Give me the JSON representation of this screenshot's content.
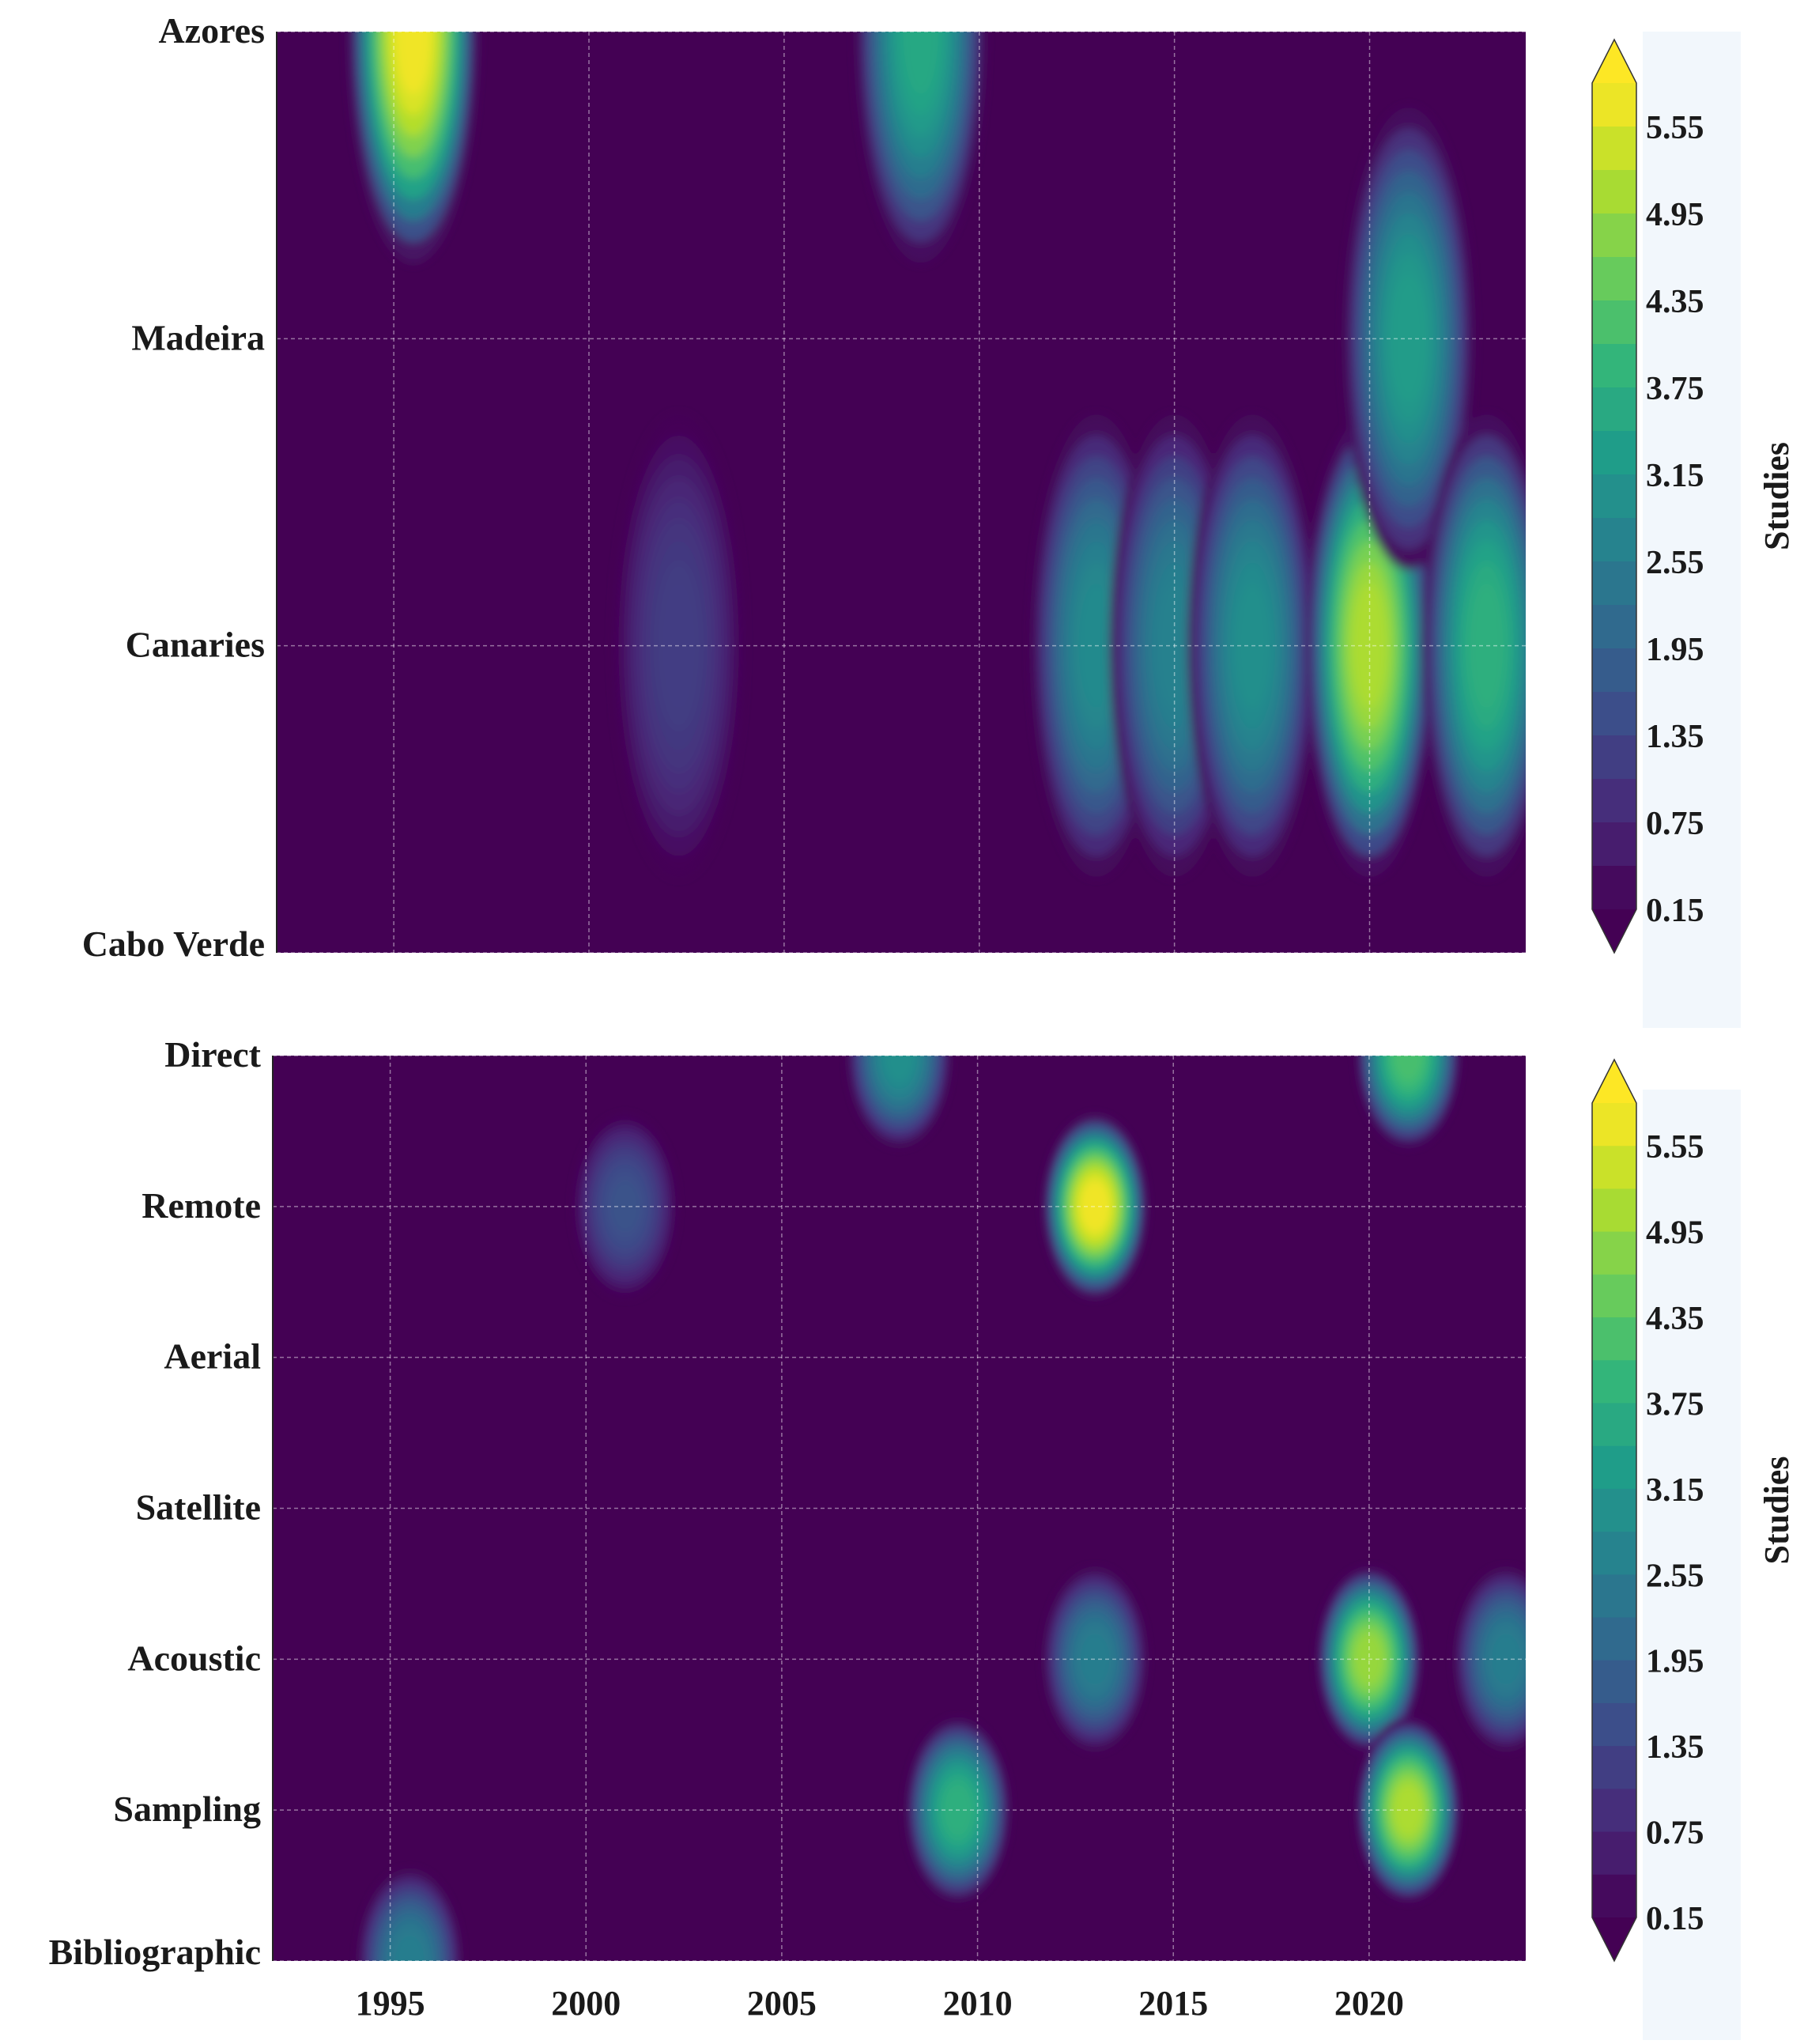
{
  "chart_data": [
    {
      "type": "heatmap",
      "title": "",
      "xlabel": "",
      "ylabel": "",
      "xlim": [
        1992,
        2024
      ],
      "x_ticks": [
        1995,
        2000,
        2005,
        2010,
        2015,
        2020
      ],
      "y_categories": [
        "Azores",
        "Madeira",
        "Canaries",
        "Cabo Verde"
      ],
      "colorbar": {
        "label": "Studies",
        "ticks": [
          "0.15",
          "0.75",
          "1.35",
          "1.95",
          "2.55",
          "3.15",
          "3.75",
          "4.35",
          "4.95",
          "5.55"
        ],
        "range": [
          0.15,
          5.85
        ],
        "extend": "both"
      },
      "hotspots": [
        {
          "x": 1995.5,
          "y": "Azores",
          "value": 5.8
        },
        {
          "x": 2002.3,
          "y": "Canaries",
          "value": 1.2
        },
        {
          "x": 2008.5,
          "y": "Azores",
          "value": 3.6
        },
        {
          "x": 2013.0,
          "y": "Canaries",
          "value": 2.9
        },
        {
          "x": 2015.0,
          "y": "Canaries",
          "value": 2.7
        },
        {
          "x": 2017.0,
          "y": "Canaries",
          "value": 3.0
        },
        {
          "x": 2020.0,
          "y": "Canaries",
          "value": 5.2
        },
        {
          "x": 2021.0,
          "y": "Madeira",
          "value": 3.3
        },
        {
          "x": 2023.0,
          "y": "Canaries",
          "value": 3.8
        }
      ]
    },
    {
      "type": "heatmap",
      "title": "",
      "xlabel": "",
      "ylabel": "",
      "xlim": [
        1992,
        2024
      ],
      "x_ticks": [
        1995,
        2000,
        2005,
        2010,
        2015,
        2020
      ],
      "y_categories": [
        "Direct",
        "Remote",
        "Aerial",
        "Satellite",
        "Acoustic",
        "Sampling",
        "Bibliographic"
      ],
      "colorbar": {
        "label": "Studies",
        "ticks": [
          "0.15",
          "0.75",
          "1.35",
          "1.95",
          "2.55",
          "3.15",
          "3.75",
          "4.35",
          "4.95",
          "5.55"
        ],
        "range": [
          0.15,
          5.85
        ],
        "extend": "both"
      },
      "hotspots": [
        {
          "x": 1995.5,
          "y": "Bibliographic",
          "value": 2.6
        },
        {
          "x": 2001.0,
          "y": "Remote",
          "value": 1.6
        },
        {
          "x": 2008.0,
          "y": "Direct",
          "value": 3.0
        },
        {
          "x": 2009.5,
          "y": "Sampling",
          "value": 3.8
        },
        {
          "x": 2013.0,
          "y": "Remote",
          "value": 5.8
        },
        {
          "x": 2013.0,
          "y": "Acoustic",
          "value": 2.6
        },
        {
          "x": 2020.0,
          "y": "Acoustic",
          "value": 5.0
        },
        {
          "x": 2021.0,
          "y": "Sampling",
          "value": 5.2
        },
        {
          "x": 2021.0,
          "y": "Direct",
          "value": 4.2
        },
        {
          "x": 2023.5,
          "y": "Acoustic",
          "value": 2.6
        }
      ]
    }
  ],
  "colors": {
    "background": "#ffffff",
    "colorbar_panel": "#f2f7fc",
    "grid": "#ffffff",
    "viridis": [
      "#440154",
      "#482878",
      "#3e4a89",
      "#31688e",
      "#26828e",
      "#1f9e89",
      "#35b779",
      "#6ece58",
      "#b5de2b",
      "#fde725"
    ]
  }
}
